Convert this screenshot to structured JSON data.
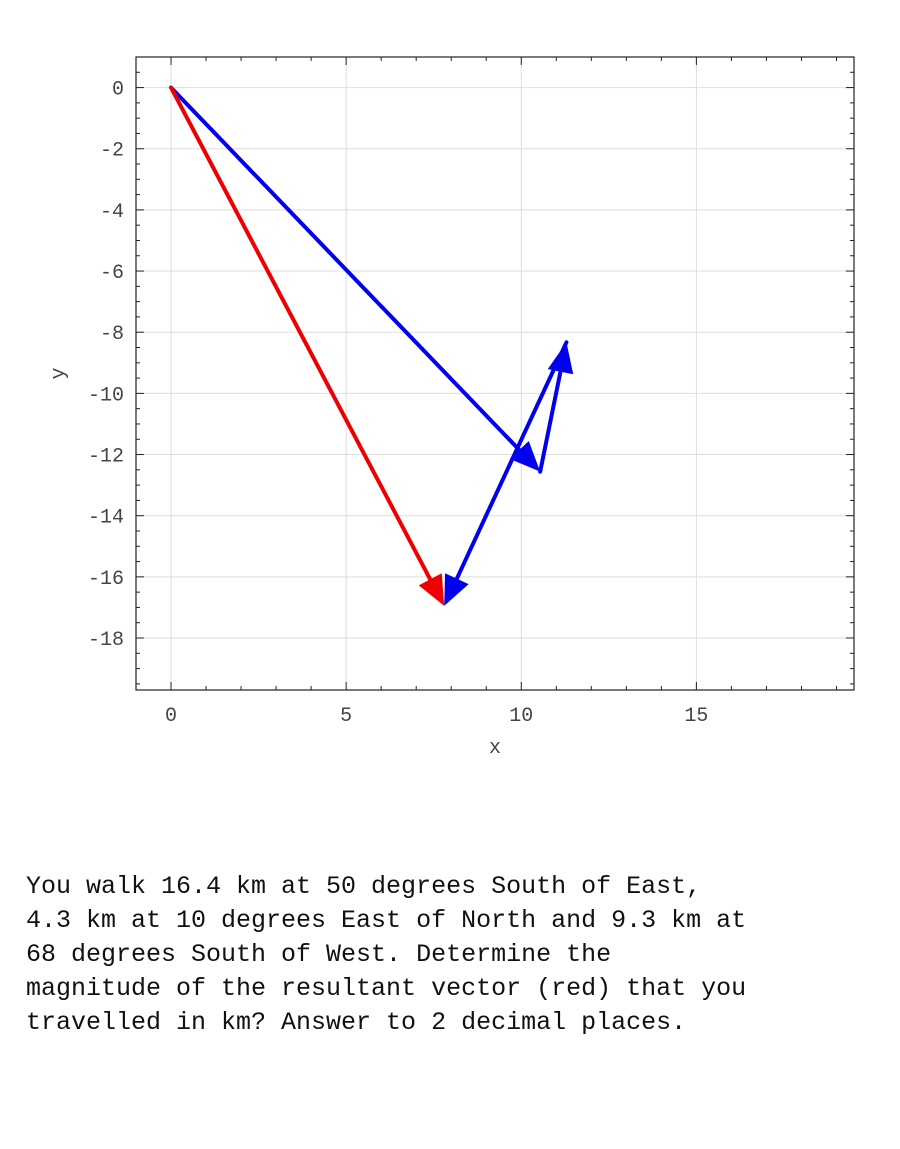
{
  "chart_data": {
    "type": "vector-plot",
    "xlabel": "x",
    "ylabel": "y",
    "xlim": [
      -1,
      19.5
    ],
    "ylim": [
      -19.7,
      1
    ],
    "xticks": [
      0,
      5,
      10,
      15
    ],
    "yticks": [
      0,
      -2,
      -4,
      -6,
      -8,
      -10,
      -12,
      -14,
      -16,
      -18
    ],
    "grid": true,
    "vectors": [
      {
        "role": "component",
        "color": "#0000ee",
        "from": [
          0,
          0
        ],
        "to": [
          10.54,
          -12.56
        ]
      },
      {
        "role": "component",
        "color": "#0000ee",
        "from": [
          10.54,
          -12.56
        ],
        "to": [
          11.29,
          -8.33
        ]
      },
      {
        "role": "component",
        "color": "#0000ee",
        "from": [
          11.29,
          -8.33
        ],
        "to": [
          7.8,
          -16.95
        ]
      },
      {
        "role": "resultant",
        "color": "#ee0000",
        "from": [
          0,
          0
        ],
        "to": [
          7.8,
          -16.95
        ]
      }
    ]
  },
  "question": {
    "text": "You walk 16.4 km at 50 degrees South of East,\n4.3 km at 10 degrees East of North and 9.3 km at\n68 degrees South of West.  Determine the\nmagnitude of the resultant vector (red) that you\ntravelled in km? Answer to 2 decimal places."
  }
}
